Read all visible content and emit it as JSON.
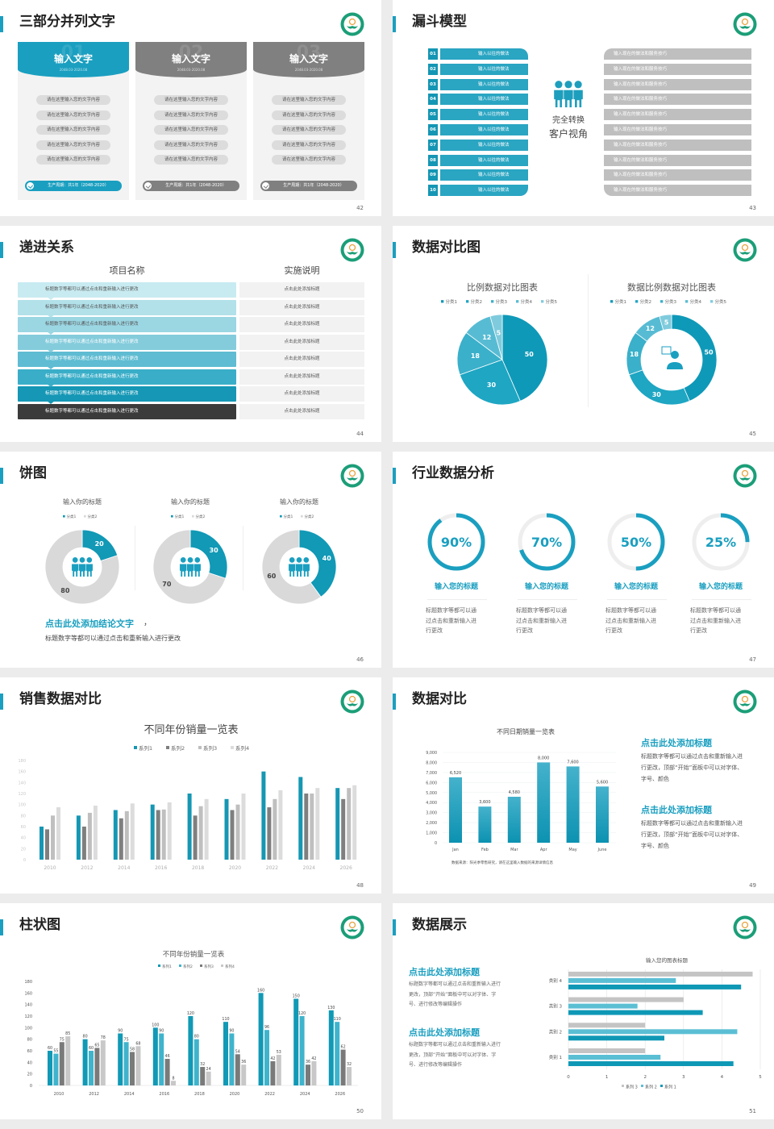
{
  "colors": {
    "accent": "#1a9fc0",
    "gray": "#808080",
    "dark": "#3b3b3b",
    "logo": "#1b9e78"
  },
  "slides": [
    {
      "page": "42",
      "title": "三部分并列文字",
      "cards": [
        {
          "number": "01",
          "heading": "输入文字",
          "date": "2048.03-2020.08",
          "active": true,
          "items": [
            "请在这里输入您的文字内容",
            "请在这里输入您的文字内容",
            "请在这里输入您的文字内容",
            "请在这里输入您的文字内容",
            "请在这里输入您的文字内容"
          ],
          "footer": "生产周期：共1年（2048-2020）"
        },
        {
          "number": "02",
          "heading": "输入文字",
          "date": "2048.03-2020.08",
          "active": false,
          "items": [
            "请在这里输入您的文字内容",
            "请在这里输入您的文字内容",
            "请在这里输入您的文字内容",
            "请在这里输入您的文字内容",
            "请在这里输入您的文字内容"
          ],
          "footer": "生产周期：共1年（2048-2020）"
        },
        {
          "number": "03",
          "heading": "输入文字",
          "date": "2048.03-2020.08",
          "active": false,
          "items": [
            "请在这里输入您的文字内容",
            "请在这里输入您的文字内容",
            "请在这里输入您的文字内容",
            "请在这里输入您的文字内容",
            "请在这里输入您的文字内容"
          ],
          "footer": "生产周期：共1年（2048-2020）"
        }
      ]
    },
    {
      "page": "43",
      "title": "漏斗模型",
      "left_items": [
        {
          "num": "01",
          "text": "输入以往的做法"
        },
        {
          "num": "02",
          "text": "输入以往的做法"
        },
        {
          "num": "03",
          "text": "输入以往的做法"
        },
        {
          "num": "04",
          "text": "输入以往的做法"
        },
        {
          "num": "05",
          "text": "输入以往的做法"
        },
        {
          "num": "06",
          "text": "输入以往的做法"
        },
        {
          "num": "07",
          "text": "输入以往的做法"
        },
        {
          "num": "08",
          "text": "输入以往的做法"
        },
        {
          "num": "09",
          "text": "输入以往的做法"
        },
        {
          "num": "10",
          "text": "输入以往的做法"
        }
      ],
      "center": [
        "完全转换",
        "客户视角"
      ],
      "right_items": [
        "输入现在的做法和服务技巧",
        "输入现在的做法和服务技巧",
        "输入现在的做法和服务技巧",
        "输入现在的做法和服务技巧",
        "输入现在的做法和服务技巧",
        "输入现在的做法和服务技巧",
        "输入现在的做法和服务技巧",
        "输入现在的做法和服务技巧",
        "输入现在的做法和服务技巧",
        "输入现在的做法和服务技巧"
      ]
    },
    {
      "page": "44",
      "title": "递进关系",
      "headers": [
        "项目名称",
        "实施说明"
      ],
      "rows": [
        {
          "item": "标题数字等都可以通过点击和重新输入进行更改",
          "note": "点击此处添加标题"
        },
        {
          "item": "标题数字等都可以通过点击和重新输入进行更改",
          "note": "点击此处添加标题"
        },
        {
          "item": "标题数字等都可以通过点击和重新输入进行更改",
          "note": "点击此处添加标题"
        },
        {
          "item": "标题数字等都可以通过点击和重新输入进行更改",
          "note": "点击此处添加标题"
        },
        {
          "item": "标题数字等都可以通过点击和重新输入进行更改",
          "note": "点击此处添加标题"
        },
        {
          "item": "标题数字等都可以通过点击和重新输入进行更改",
          "note": "点击此处添加标题"
        },
        {
          "item": "标题数字等都可以通过点击和重新输入进行更改",
          "note": "点击此处添加标题"
        },
        {
          "item": "标题数字等都可以通过点击和重新输入进行更改",
          "note": "点击此处添加标题"
        }
      ]
    },
    {
      "page": "45",
      "title": "数据对比图"
    },
    {
      "page": "46",
      "title": "饼图",
      "conclusion": "点击此处添加结论文字",
      "conclusion_comma": "，",
      "conclusion_sub": "标题数字等都可以通过点击和重新输入进行更改"
    },
    {
      "page": "47",
      "title": "行业数据分析",
      "items": [
        {
          "value": 90,
          "label": "90%",
          "heading": "输入您的标题",
          "desc": [
            "标题数字等都可以通",
            "过点击和重新输入进",
            "行更改"
          ]
        },
        {
          "value": 70,
          "label": "70%",
          "heading": "输入您的标题",
          "desc": [
            "标题数字等都可以通",
            "过点击和重新输入进",
            "行更改"
          ]
        },
        {
          "value": 50,
          "label": "50%",
          "heading": "输入您的标题",
          "desc": [
            "标题数字等都可以通",
            "过点击和重新输入进",
            "行更改"
          ]
        },
        {
          "value": 25,
          "label": "25%",
          "heading": "输入您的标题",
          "desc": [
            "标题数字等都可以通",
            "过点击和重新输入进",
            "行更改"
          ]
        }
      ]
    },
    {
      "page": "48",
      "title": "销售数据对比"
    },
    {
      "page": "49",
      "title": "数据对比",
      "source": "数据来源：阳光季零售研究，请在这里输入数据的来源详情信息",
      "blocks": [
        {
          "heading": "点击此处添加标题",
          "lines": [
            "标题数字等都可以通过点击和重新输入进",
            "行更改，顶部“开始”面板中可以对字体、",
            "字号、颜色"
          ]
        },
        {
          "heading": "点击此处添加标题",
          "lines": [
            "标题数字等都可以通过点击和重新输入进",
            "行更改，顶部“开始”面板中可以对字体、",
            "字号、颜色"
          ]
        }
      ]
    },
    {
      "page": "50",
      "title": "柱状图"
    },
    {
      "page": "51",
      "title": "数据展示",
      "blocks": [
        {
          "heading": "点击此处添加标题",
          "lines": [
            "标题数字等都可以通过点击和重新输入进行",
            "更改，顶部“开始”面板中可以对字体、字",
            "号、进行修改等编辑操作"
          ]
        },
        {
          "heading": "点击此处添加标题",
          "lines": [
            "标题数字等都可以通过点击和重新输入进行",
            "更改，顶部“开始”面板中可以对字体、字",
            "号、进行修改等编辑操作"
          ]
        }
      ]
    }
  ],
  "chart_data": [
    {
      "type": "pie",
      "slide": "45",
      "title": "比例数据对比图表",
      "categories": [
        "分类1",
        "分类2",
        "分类3",
        "分类4",
        "分类5"
      ],
      "values": [
        50,
        30,
        18,
        12,
        5
      ],
      "colors": [
        "#0f99b8",
        "#1ea6c3",
        "#3ab0ca",
        "#57bcd3",
        "#7fcbdd"
      ],
      "legend": "top"
    },
    {
      "type": "pie",
      "subtype": "donut",
      "slide": "45",
      "title": "数据比例数据对比图表",
      "categories": [
        "分类1",
        "分类2",
        "分类3",
        "分类4",
        "分类5"
      ],
      "values": [
        50,
        30,
        18,
        12,
        5
      ],
      "colors": [
        "#0f99b8",
        "#1ea6c3",
        "#3ab0ca",
        "#57bcd3",
        "#7fcbdd"
      ],
      "legend": "top",
      "center_icon": "user-chat-icon"
    },
    {
      "type": "pie",
      "subtype": "donut",
      "slide": "46",
      "charts": [
        {
          "title": "输入你的标题",
          "categories": [
            "分类1",
            "分类2"
          ],
          "values": [
            20,
            80
          ]
        },
        {
          "title": "输入你的标题",
          "categories": [
            "分类1",
            "分类2"
          ],
          "values": [
            30,
            70
          ]
        },
        {
          "title": "输入你的标题",
          "categories": [
            "分类1",
            "分类2"
          ],
          "values": [
            40,
            60
          ]
        }
      ],
      "colors": [
        "#1199b6",
        "#d9d9d9"
      ],
      "legend": "top",
      "center_icon": "people-icon"
    },
    {
      "type": "bar",
      "slide": "48",
      "title": "不同年份销量一览表",
      "categories": [
        "2010",
        "2012",
        "2014",
        "2016",
        "2018",
        "2020",
        "2022",
        "2024",
        "2026"
      ],
      "series": [
        {
          "name": "系列1",
          "values": [
            60,
            80,
            90,
            100,
            120,
            110,
            160,
            150,
            130
          ],
          "color": "#1597b3"
        },
        {
          "name": "系列2",
          "values": [
            55,
            60,
            75,
            90,
            80,
            90,
            95,
            120,
            110
          ],
          "color": "#7f7f7f"
        },
        {
          "name": "系列3",
          "values": [
            80,
            85,
            88,
            91,
            97,
            100,
            110,
            120,
            130
          ],
          "color": "#bfbfbf"
        },
        {
          "name": "系列4",
          "values": [
            95,
            98,
            102,
            104,
            110,
            120,
            126,
            130,
            135
          ],
          "color": "#dcdcdc"
        }
      ],
      "ylim": [
        0,
        180
      ],
      "yticks": [
        0,
        20,
        40,
        60,
        80,
        100,
        120,
        140,
        160,
        180
      ],
      "legend": "top",
      "grid": false
    },
    {
      "type": "bar",
      "slide": "49",
      "title": "不同日期销量一览表",
      "categories": [
        "Jan",
        "Feb",
        "Mar",
        "Apr",
        "May",
        "June"
      ],
      "values": [
        6520,
        3600,
        4580,
        8000,
        7600,
        5600
      ],
      "value_labels": [
        "6,520",
        "3,600",
        "4,580",
        "8,000",
        "7,600",
        "5,600"
      ],
      "ylim": [
        0,
        9000
      ],
      "yticks": [
        "0",
        "1,000",
        "2,000",
        "3,000",
        "4,000",
        "5,000",
        "6,000",
        "7,000",
        "8,000",
        "9,000"
      ],
      "grid": true,
      "color": "#1a9fc0"
    },
    {
      "type": "bar",
      "slide": "50",
      "title": "不同年份销量一览表",
      "categories": [
        "2010",
        "2012",
        "2014",
        "2016",
        "2018",
        "2020",
        "2022",
        "2024",
        "2026"
      ],
      "series": [
        {
          "name": "系列1",
          "values": [
            60,
            80,
            90,
            100,
            120,
            110,
            160,
            150,
            130
          ],
          "color": "#1199b5"
        },
        {
          "name": "系列2",
          "values": [
            55,
            60,
            75,
            90,
            80,
            90,
            96,
            120,
            110
          ],
          "color": "#3fb4cc"
        },
        {
          "name": "系列3",
          "values": [
            75,
            65,
            58,
            46,
            32,
            54,
            42,
            36,
            62
          ],
          "color": "#7a7a7a"
        },
        {
          "name": "系列4",
          "values": [
            85,
            78,
            68,
            8,
            24,
            36,
            53,
            42,
            32
          ],
          "color": "#c8c8c8"
        }
      ],
      "ylim": [
        0,
        180
      ],
      "yticks": [
        0,
        20,
        40,
        60,
        80,
        100,
        120,
        140,
        160,
        180
      ],
      "legend": "top",
      "data_labels": true
    },
    {
      "type": "bar",
      "orientation": "horizontal",
      "slide": "51",
      "title": "输入您的图表标题",
      "categories": [
        "类别 1",
        "类别 2",
        "类别 3",
        "类别 4"
      ],
      "series": [
        {
          "name": "系列 1",
          "values": [
            4.3,
            2.5,
            3.5,
            4.5
          ],
          "color": "#0f98b6"
        },
        {
          "name": "系列 2",
          "values": [
            2.4,
            4.4,
            1.8,
            2.8
          ],
          "color": "#5bbfd4"
        },
        {
          "name": "系列 3",
          "values": [
            2,
            2,
            3,
            4.8
          ],
          "color": "#c4c4c4"
        }
      ],
      "xlim": [
        0,
        5
      ],
      "xticks": [
        0,
        1,
        2,
        3,
        4,
        5
      ],
      "grid": true,
      "legend": "bottom",
      "legend_order": [
        "系列 3",
        "系列 2",
        "系列 1"
      ]
    }
  ]
}
